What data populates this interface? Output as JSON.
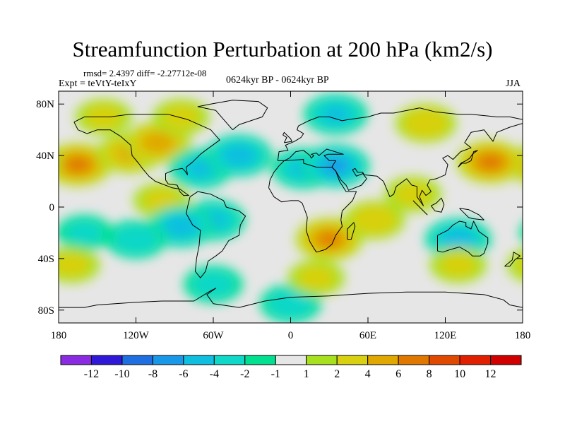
{
  "chart_data": {
    "type": "heatmap",
    "title": "Streamfunction Perturbation at 200 hPa (km2/s)",
    "stats_line": "rmsd= 2.4397 diff= -2.27712e-08",
    "experiment": "Expt = teVtY-teIxY",
    "period": "0624kyr BP - 0624kyr BP",
    "season": "JJA",
    "x_axis": {
      "range": [
        -180,
        180
      ],
      "ticks": [
        {
          "value": -180,
          "label": "180"
        },
        {
          "value": -120,
          "label": "120W"
        },
        {
          "value": -60,
          "label": "60W"
        },
        {
          "value": 0,
          "label": "0"
        },
        {
          "value": 60,
          "label": "60E"
        },
        {
          "value": 120,
          "label": "120E"
        },
        {
          "value": 180,
          "label": "180"
        }
      ]
    },
    "y_axis": {
      "range": [
        -90,
        90
      ],
      "ticks": [
        {
          "value": 80,
          "label": "80N"
        },
        {
          "value": 40,
          "label": "40N"
        },
        {
          "value": 0,
          "label": "0"
        },
        {
          "value": -40,
          "label": "40S"
        },
        {
          "value": -80,
          "label": "80S"
        }
      ]
    },
    "colorbar": {
      "boundaries": [
        -12,
        -10,
        -8,
        -6,
        -4,
        -2,
        -1,
        1,
        2,
        4,
        6,
        8,
        10,
        12
      ],
      "labels": [
        "-12",
        "-10",
        "-8",
        "-6",
        "-4",
        "-2",
        "-1",
        "1",
        "2",
        "4",
        "6",
        "8",
        "10",
        "12"
      ],
      "colors": [
        "#8a2be2",
        "#3018d8",
        "#1f6fe0",
        "#1a98e8",
        "#10bee0",
        "#10d8c8",
        "#00e090",
        "#e6e6e6",
        "#a8e020",
        "#d8d010",
        "#e0a800",
        "#e07800",
        "#e04a00",
        "#e02000",
        "#d00000"
      ]
    },
    "anomalies": [
      {
        "lon": -165,
        "lat": 33,
        "value": 6.5
      },
      {
        "lon": -125,
        "lat": 42,
        "value": 4
      },
      {
        "lon": -103,
        "lat": 50,
        "value": 5
      },
      {
        "lon": -85,
        "lat": 70,
        "value": 2
      },
      {
        "lon": -145,
        "lat": 70,
        "value": 2
      },
      {
        "lon": -100,
        "lat": 5,
        "value": 2
      },
      {
        "lon": -70,
        "lat": 30,
        "value": -4
      },
      {
        "lon": -40,
        "lat": 40,
        "value": -5
      },
      {
        "lon": 10,
        "lat": 30,
        "value": -4
      },
      {
        "lon": 35,
        "lat": 32,
        "value": -6
      },
      {
        "lon": 35,
        "lat": 72,
        "value": -4
      },
      {
        "lon": -60,
        "lat": -10,
        "value": -4
      },
      {
        "lon": -85,
        "lat": -15,
        "value": -5
      },
      {
        "lon": -120,
        "lat": -25,
        "value": -3
      },
      {
        "lon": -160,
        "lat": -20,
        "value": -2
      },
      {
        "lon": -60,
        "lat": -60,
        "value": -2.5
      },
      {
        "lon": 0,
        "lat": -75,
        "value": -3
      },
      {
        "lon": 130,
        "lat": -25,
        "value": -5
      },
      {
        "lon": 95,
        "lat": 10,
        "value": 2
      },
      {
        "lon": 155,
        "lat": 35,
        "value": 6.5
      },
      {
        "lon": 105,
        "lat": 65,
        "value": 3
      },
      {
        "lon": 30,
        "lat": -25,
        "value": 6
      },
      {
        "lon": 65,
        "lat": -10,
        "value": 3
      },
      {
        "lon": 20,
        "lat": -55,
        "value": 2
      },
      {
        "lon": 130,
        "lat": -45,
        "value": 2
      },
      {
        "lon": -170,
        "lat": -45,
        "value": 2
      }
    ]
  }
}
